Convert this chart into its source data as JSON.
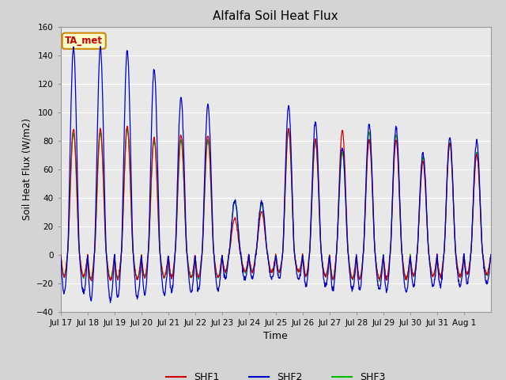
{
  "title": "Alfalfa Soil Heat Flux",
  "ylabel": "Soil Heat Flux (W/m2)",
  "xlabel": "Time",
  "ylim": [
    -40,
    160
  ],
  "yticks": [
    -40,
    -20,
    0,
    20,
    40,
    60,
    80,
    100,
    120,
    140,
    160
  ],
  "fig_bg_color": "#d4d4d4",
  "plot_bg_color": "#e8e8e8",
  "shf1_color": "#cc0000",
  "shf2_color": "#0000cc",
  "shf3_color": "#00bb00",
  "legend_items": [
    "SHF1",
    "SHF2",
    "SHF3"
  ],
  "annotation_text": "TA_met",
  "annotation_bg": "#ffffcc",
  "annotation_border": "#cc8800",
  "n_days": 16,
  "pts_per_day": 96,
  "shf2_peaks": [
    145,
    145,
    143,
    130,
    110,
    105,
    38,
    37,
    104,
    93,
    75,
    91,
    89,
    71,
    82,
    80
  ],
  "shf2_troughs": [
    -27,
    -32,
    -30,
    -28,
    -26,
    -25,
    -17,
    -17,
    -17,
    -22,
    -25,
    -24,
    -26,
    -22,
    -22,
    -20
  ],
  "shf1_peaks": [
    88,
    88,
    90,
    82,
    84,
    84,
    25,
    30,
    88,
    80,
    87,
    80,
    80,
    65,
    78,
    70
  ],
  "shf1_troughs": [
    -15,
    -18,
    -17,
    -16,
    -16,
    -16,
    -12,
    -12,
    -12,
    -15,
    -17,
    -17,
    -17,
    -15,
    -15,
    -14
  ],
  "shf3_peaks": [
    85,
    85,
    88,
    80,
    80,
    80,
    37,
    35,
    88,
    80,
    72,
    86,
    84,
    68,
    78,
    72
  ],
  "shf3_troughs": [
    -15,
    -17,
    -17,
    -16,
    -16,
    -16,
    -12,
    -12,
    -12,
    -15,
    -17,
    -17,
    -17,
    -15,
    -15,
    -14
  ],
  "tick_labels": [
    "Jul 17",
    "Jul 18",
    "Jul 19",
    "Jul 20",
    "Jul 21",
    "Jul 22",
    "Jul 23",
    "Jul 24",
    "Jul 25",
    "Jul 26",
    "Jul 27",
    "Jul 28",
    "Jul 29",
    "Jul 30",
    "Jul 31",
    "Aug 1"
  ]
}
